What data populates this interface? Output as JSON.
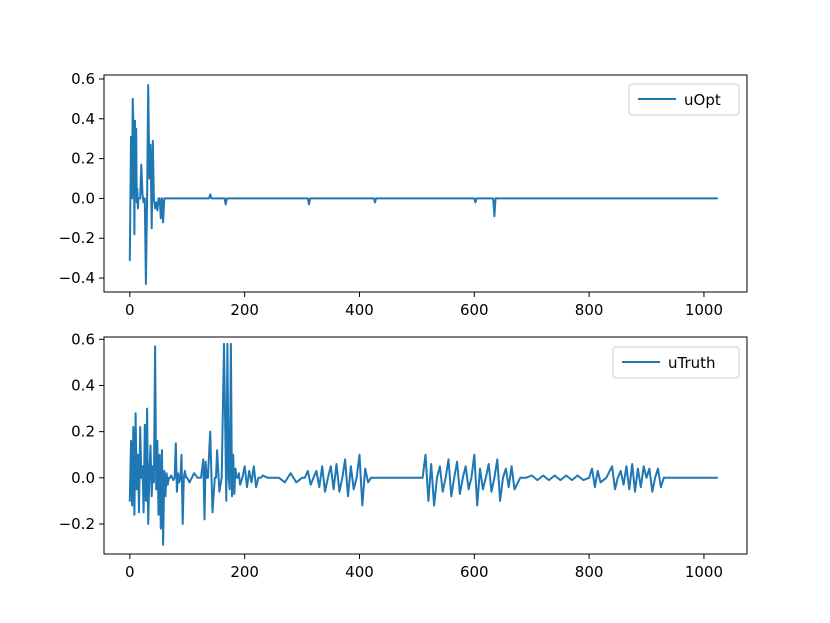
{
  "chart_data": [
    {
      "type": "line",
      "xlim": [
        -45,
        1075
      ],
      "ylim": [
        -0.47,
        0.62
      ],
      "xticks": [
        0,
        200,
        400,
        600,
        800,
        1000
      ],
      "xtick_labels": [
        "0",
        "200",
        "400",
        "600",
        "800",
        "1000"
      ],
      "yticks": [
        -0.4,
        -0.2,
        0.0,
        0.2,
        0.4,
        0.6
      ],
      "ytick_labels": [
        "−0.4",
        "−0.2",
        "0.0",
        "0.2",
        "0.4",
        "0.6"
      ],
      "legend_position": "top-right",
      "series": [
        {
          "name": "uOpt",
          "color": "#1f77b4",
          "x": [
            0,
            2,
            4,
            5,
            7,
            8,
            9,
            10,
            11,
            12,
            13,
            14,
            15,
            16,
            18,
            20,
            22,
            24,
            26,
            28,
            30,
            32,
            34,
            36,
            38,
            40,
            42,
            44,
            46,
            48,
            50,
            52,
            54,
            56,
            58,
            60,
            100,
            138,
            140,
            142,
            165,
            167,
            169,
            310,
            312,
            314,
            425,
            427,
            429,
            600,
            602,
            604,
            633,
            635,
            637,
            1023
          ],
          "y": [
            -0.31,
            0.31,
            0.0,
            0.5,
            0.28,
            -0.18,
            0.39,
            0.03,
            0.35,
            -0.02,
            0.05,
            -0.05,
            0.0,
            0.0,
            0.0,
            0.17,
            0.02,
            -0.02,
            0.0,
            -0.43,
            0.0,
            0.57,
            0.1,
            0.27,
            -0.15,
            0.29,
            0.0,
            -0.05,
            -0.02,
            -0.06,
            0.0,
            0.0,
            -0.1,
            0.0,
            -0.12,
            0.0,
            0.0,
            0.0,
            0.02,
            0.0,
            0.0,
            -0.03,
            0.0,
            0.0,
            -0.03,
            0.0,
            0.0,
            -0.02,
            0.0,
            0.0,
            -0.02,
            0.0,
            0.0,
            -0.09,
            0.0,
            0.0
          ]
        }
      ]
    },
    {
      "type": "line",
      "xlim": [
        -45,
        1075
      ],
      "ylim": [
        -0.33,
        0.61
      ],
      "xticks": [
        0,
        200,
        400,
        600,
        800,
        1000
      ],
      "xtick_labels": [
        "0",
        "200",
        "400",
        "600",
        "800",
        "1000"
      ],
      "yticks": [
        -0.2,
        0.0,
        0.2,
        0.4,
        0.6
      ],
      "ytick_labels": [
        "−0.2",
        "0.0",
        "0.2",
        "0.4",
        "0.6"
      ],
      "legend_position": "top-right",
      "series": [
        {
          "name": "uTruth",
          "color": "#1f77b4",
          "x": [
            0,
            2,
            4,
            6,
            8,
            10,
            12,
            14,
            16,
            18,
            20,
            22,
            24,
            26,
            28,
            30,
            32,
            34,
            36,
            38,
            40,
            42,
            44,
            46,
            48,
            50,
            52,
            54,
            56,
            58,
            60,
            62,
            64,
            66,
            68,
            70,
            72,
            74,
            76,
            78,
            80,
            82,
            84,
            86,
            88,
            90,
            92,
            94,
            96,
            98,
            100,
            104,
            108,
            112,
            118,
            124,
            128,
            130,
            132,
            134,
            136,
            140,
            144,
            148,
            150,
            152,
            156,
            160,
            164,
            168,
            170,
            172,
            174,
            176,
            178,
            180,
            182,
            184,
            186,
            188,
            190,
            192,
            196,
            200,
            204,
            208,
            212,
            216,
            220,
            224,
            228,
            232,
            240,
            250,
            260,
            270,
            280,
            290,
            300,
            305,
            310,
            315,
            320,
            325,
            330,
            335,
            340,
            345,
            350,
            355,
            360,
            365,
            370,
            375,
            380,
            385,
            390,
            395,
            400,
            405,
            410,
            415,
            420,
            430,
            450,
            480,
            510,
            515,
            520,
            525,
            530,
            535,
            540,
            545,
            550,
            555,
            560,
            565,
            570,
            575,
            580,
            585,
            590,
            595,
            600,
            605,
            610,
            615,
            620,
            625,
            630,
            635,
            640,
            645,
            650,
            655,
            660,
            665,
            670,
            680,
            690,
            700,
            710,
            720,
            730,
            740,
            750,
            760,
            770,
            780,
            790,
            800,
            805,
            810,
            815,
            820,
            830,
            840,
            845,
            850,
            855,
            860,
            865,
            870,
            875,
            880,
            885,
            890,
            895,
            900,
            905,
            910,
            915,
            920,
            925,
            930,
            1023
          ],
          "y": [
            -0.1,
            0.16,
            -0.12,
            0.22,
            -0.16,
            0.28,
            -0.05,
            0.1,
            -0.15,
            0.22,
            0.0,
            0.05,
            -0.15,
            0.23,
            -0.1,
            0.3,
            -0.2,
            0.02,
            0.14,
            -0.08,
            0.05,
            -0.02,
            0.57,
            -0.05,
            0.16,
            -0.16,
            0.1,
            -0.22,
            0.12,
            -0.29,
            0.03,
            -0.08,
            0.02,
            -0.03,
            0.0,
            0.0,
            0.01,
            0.0,
            -0.01,
            0.0,
            0.15,
            -0.06,
            0.02,
            -0.02,
            0.0,
            0.1,
            -0.2,
            0.0,
            0.03,
            0.0,
            0.0,
            -0.02,
            0.0,
            0.02,
            0.0,
            0.0,
            0.08,
            -0.18,
            0.07,
            0.0,
            0.0,
            0.2,
            -0.15,
            0.0,
            0.0,
            0.12,
            -0.06,
            0.0,
            0.58,
            -0.1,
            0.58,
            0.0,
            -0.05,
            0.58,
            -0.08,
            0.1,
            -0.07,
            0.04,
            0.0,
            0.0,
            0.02,
            -0.03,
            0.0,
            0.05,
            -0.04,
            0.03,
            -0.02,
            0.05,
            -0.04,
            0.0,
            0.0,
            0.01,
            0.0,
            0.0,
            0.0,
            -0.02,
            0.02,
            -0.02,
            0.0,
            0.0,
            0.03,
            -0.03,
            0.0,
            0.03,
            -0.04,
            0.05,
            -0.06,
            0.0,
            0.05,
            -0.05,
            0.06,
            -0.06,
            0.0,
            0.08,
            -0.08,
            0.05,
            -0.05,
            0.0,
            0.1,
            -0.12,
            0.04,
            -0.02,
            0.0,
            0.0,
            0.0,
            0.0,
            0.0,
            0.1,
            -0.1,
            0.06,
            -0.12,
            0.0,
            0.05,
            -0.06,
            0.0,
            0.08,
            -0.08,
            0.0,
            0.07,
            -0.07,
            0.0,
            0.05,
            -0.05,
            0.0,
            0.1,
            -0.12,
            0.04,
            -0.05,
            0.0,
            0.06,
            -0.06,
            0.0,
            0.08,
            -0.1,
            0.0,
            0.04,
            -0.04,
            0.05,
            -0.05,
            0.0,
            0.0,
            0.01,
            -0.01,
            0.01,
            -0.01,
            0.01,
            -0.01,
            0.01,
            -0.01,
            0.01,
            -0.01,
            0.0,
            0.04,
            -0.04,
            0.03,
            -0.02,
            0.0,
            0.05,
            -0.05,
            0.0,
            0.03,
            -0.03,
            0.05,
            -0.05,
            0.06,
            -0.06,
            0.04,
            -0.04,
            0.05,
            0.0,
            0.04,
            -0.06,
            0.0,
            0.04,
            -0.04,
            0.0,
            0.0
          ]
        }
      ]
    }
  ]
}
